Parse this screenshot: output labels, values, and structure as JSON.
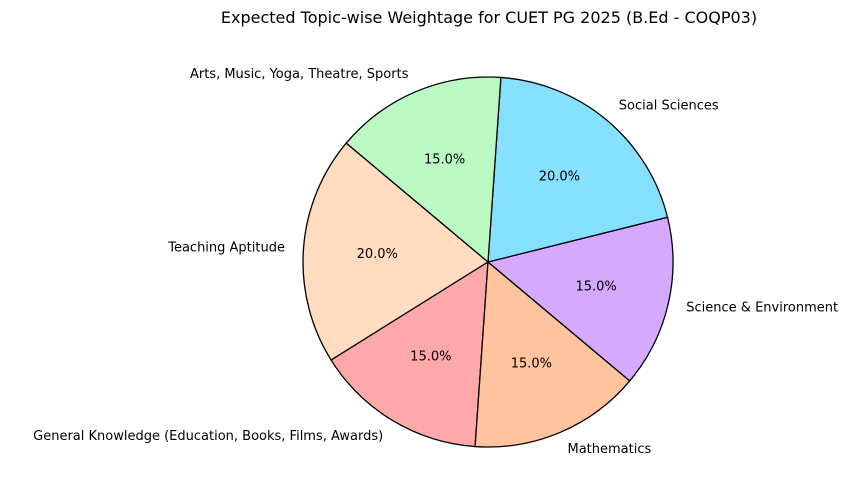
{
  "chart_data": {
    "type": "pie",
    "title": "Expected Topic-wise Weightage for CUET PG 2025 (B.Ed - COQP03)",
    "start_angle": 140,
    "direction": "counterclockwise",
    "autopct_format": "%.1f%%",
    "slices": [
      {
        "label": "Teaching Aptitude",
        "value": 20,
        "pct_label": "20.0%",
        "color": "#ffdcbf"
      },
      {
        "label": "General Knowledge (Education, Books, Films, Awards)",
        "value": 15,
        "pct_label": "15.0%",
        "color": "#ffa8aa"
      },
      {
        "label": "Mathematics",
        "value": 15,
        "pct_label": "15.0%",
        "color": "#ffc39e"
      },
      {
        "label": "Science & Environment",
        "value": 15,
        "pct_label": "15.0%",
        "color": "#d5a9ff"
      },
      {
        "label": "Social Sciences",
        "value": 20,
        "pct_label": "20.0%",
        "color": "#86e0ff"
      },
      {
        "label": "Arts, Music, Yoga, Theatre, Sports",
        "value": 15,
        "pct_label": "15.0%",
        "color": "#baf9c1"
      }
    ],
    "edge_color": "#000000"
  }
}
